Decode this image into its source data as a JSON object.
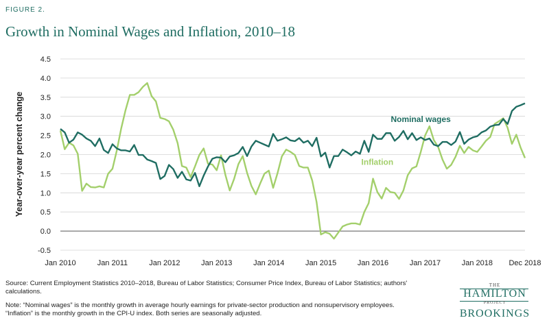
{
  "figure_label": "FIGURE 2.",
  "chart_data": {
    "type": "line",
    "title": "Growth in Nominal Wages and Inflation, 2010–18",
    "xlabel": "",
    "ylabel": "Year-over-year percent change",
    "x_start": "2010-01",
    "x_end": "2018-12",
    "xticks": [
      {
        "label": "Jan 2010",
        "date": "2010-01"
      },
      {
        "label": "Jan 2011",
        "date": "2011-01"
      },
      {
        "label": "Jan 2012",
        "date": "2012-01"
      },
      {
        "label": "Jan 2013",
        "date": "2013-01"
      },
      {
        "label": "Jan 2014",
        "date": "2014-01"
      },
      {
        "label": "Jan 2015",
        "date": "2015-01"
      },
      {
        "label": "Jan 2016",
        "date": "2016-01"
      },
      {
        "label": "Jan 2017",
        "date": "2017-01"
      },
      {
        "label": "Jan 2018",
        "date": "2018-01"
      },
      {
        "label": "Dec 2018",
        "date": "2018-12"
      }
    ],
    "yticks": [
      "-0.5",
      "0.0",
      "0.5",
      "1.0",
      "1.5",
      "2.0",
      "2.5",
      "3.0",
      "3.5",
      "4.0",
      "4.5"
    ],
    "ylim": [
      -0.5,
      4.5
    ],
    "grid": "horizontal",
    "series": [
      {
        "name": "Nominal wages",
        "color": "#1f6d62",
        "label_date": "2016-12",
        "label_value": 2.85,
        "values": [
          2.67,
          2.58,
          2.31,
          2.39,
          2.58,
          2.52,
          2.42,
          2.36,
          2.22,
          2.42,
          2.12,
          2.04,
          2.27,
          2.16,
          2.11,
          2.11,
          2.08,
          2.25,
          1.99,
          1.99,
          1.87,
          1.83,
          1.78,
          1.36,
          1.44,
          1.73,
          1.62,
          1.39,
          1.55,
          1.35,
          1.32,
          1.52,
          1.17,
          1.45,
          1.69,
          1.89,
          1.93,
          1.92,
          1.8,
          1.95,
          1.98,
          2.04,
          2.2,
          1.96,
          2.21,
          2.36,
          2.31,
          2.26,
          2.21,
          2.54,
          2.36,
          2.4,
          2.45,
          2.37,
          2.35,
          2.43,
          2.31,
          2.36,
          2.22,
          2.44,
          1.95,
          2.05,
          1.66,
          1.96,
          1.96,
          2.13,
          2.06,
          1.98,
          2.08,
          2.02,
          2.36,
          2.07,
          2.52,
          2.41,
          2.41,
          2.56,
          2.56,
          2.36,
          2.46,
          2.62,
          2.4,
          2.56,
          2.38,
          2.45,
          2.38,
          2.42,
          2.26,
          2.22,
          2.33,
          2.33,
          2.25,
          2.34,
          2.59,
          2.28,
          2.39,
          2.45,
          2.48,
          2.58,
          2.63,
          2.73,
          2.77,
          2.78,
          2.93,
          2.8,
          3.14,
          3.25,
          3.29,
          3.34
        ]
      },
      {
        "name": "Inflation",
        "color": "#a3cf6b",
        "label_date": "2016-02",
        "label_value": 1.73,
        "values": [
          2.63,
          2.14,
          2.31,
          2.24,
          2.02,
          1.05,
          1.24,
          1.15,
          1.14,
          1.17,
          1.14,
          1.5,
          1.63,
          2.11,
          2.68,
          3.16,
          3.56,
          3.56,
          3.63,
          3.77,
          3.87,
          3.53,
          3.39,
          2.96,
          2.93,
          2.87,
          2.65,
          2.3,
          1.7,
          1.66,
          1.41,
          1.69,
          1.99,
          2.16,
          1.76,
          1.74,
          1.59,
          1.98,
          1.47,
          1.06,
          1.36,
          1.75,
          1.96,
          1.52,
          1.18,
          0.96,
          1.24,
          1.5,
          1.58,
          1.13,
          1.51,
          1.95,
          2.13,
          2.07,
          1.99,
          1.7,
          1.66,
          1.66,
          1.32,
          0.76,
          -0.09,
          -0.03,
          -0.07,
          -0.2,
          -0.04,
          0.12,
          0.17,
          0.2,
          0.2,
          0.17,
          0.5,
          0.73,
          1.37,
          1.02,
          0.85,
          1.13,
          1.02,
          1.0,
          0.84,
          1.06,
          1.46,
          1.64,
          1.69,
          2.07,
          2.5,
          2.74,
          2.38,
          2.2,
          1.87,
          1.63,
          1.73,
          1.94,
          2.23,
          2.04,
          2.2,
          2.11,
          2.07,
          2.21,
          2.36,
          2.46,
          2.8,
          2.87,
          2.95,
          2.7,
          2.28,
          2.52,
          2.18,
          1.91
        ]
      }
    ]
  },
  "notes": {
    "source": "Source: Current Employment Statistics 2010–2018, Bureau of Labor Statistics; Consumer Price Index, Bureau of Labor Statistics; authors' calculations.",
    "note": "Note: “Nominal wages” is the monthly growth in average hourly earnings for private-sector production and nonsupervisory employees. “Inflation” is the monthly growth in the CPI-U index. Both series are seasonally adjusted."
  },
  "logo": {
    "the": "THE",
    "hamilton": "HAMILTON",
    "project": "PROJECT",
    "brookings": "BROOKINGS"
  }
}
